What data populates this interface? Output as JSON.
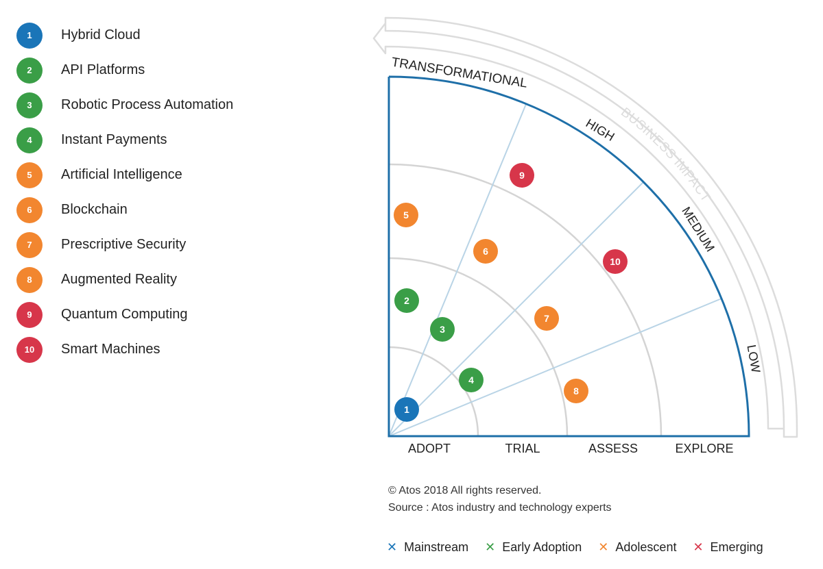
{
  "technologies": [
    {
      "number": "1",
      "label": "Hybrid Cloud",
      "maturity": "Mainstream",
      "color": "#1a75b8",
      "ring": "ADOPT",
      "impact": "LOW"
    },
    {
      "number": "2",
      "label": "API Platforms",
      "maturity": "Early Adoption",
      "color": "#3a9e47",
      "ring": "ADOPT",
      "impact": "TRANSFORMATIONAL"
    },
    {
      "number": "3",
      "label": "Robotic Process Automation",
      "maturity": "Early Adoption",
      "color": "#3a9e47",
      "ring": "TRIAL",
      "impact": "HIGH"
    },
    {
      "number": "4",
      "label": "Instant Payments",
      "maturity": "Early Adoption",
      "color": "#3a9e47",
      "ring": "TRIAL",
      "impact": "MEDIUM"
    },
    {
      "number": "5",
      "label": "Artificial Intelligence",
      "maturity": "Adolescent",
      "color": "#f2862f",
      "ring": "EXPLORE",
      "impact": "TRANSFORMATIONAL"
    },
    {
      "number": "6",
      "label": "Blockchain",
      "maturity": "Adolescent",
      "color": "#f2862f",
      "ring": "ASSESS",
      "impact": "HIGH"
    },
    {
      "number": "7",
      "label": "Prescriptive Security",
      "maturity": "Adolescent",
      "color": "#f2862f",
      "ring": "ASSESS",
      "impact": "MEDIUM"
    },
    {
      "number": "8",
      "label": "Augmented Reality",
      "maturity": "Adolescent",
      "color": "#f2862f",
      "ring": "ASSESS",
      "impact": "LOW"
    },
    {
      "number": "9",
      "label": "Quantum Computing",
      "maturity": "Emerging",
      "color": "#d7364a",
      "ring": "EXPLORE",
      "impact": "HIGH"
    },
    {
      "number": "10",
      "label": "Smart Machines",
      "maturity": "Emerging",
      "color": "#d7364a",
      "ring": "EXPLORE",
      "impact": "MEDIUM"
    }
  ],
  "rings": [
    "ADOPT",
    "TRIAL",
    "ASSESS",
    "EXPLORE"
  ],
  "impact_levels": [
    "TRANSFORMATIONAL",
    "HIGH",
    "MEDIUM",
    "LOW"
  ],
  "impact_axis_label": "BUSINESS IMPACT",
  "copyright": "© Atos 2018 All rights reserved.",
  "source": "Source : Atos industry and technology experts",
  "maturity_legend": [
    {
      "label": "Mainstream",
      "color": "#1a75b8"
    },
    {
      "label": "Early Adoption",
      "color": "#3a9e47"
    },
    {
      "label": "Adolescent",
      "color": "#f2862f"
    },
    {
      "label": "Emerging",
      "color": "#d7364a"
    }
  ],
  "colors": {
    "radar_outline": "#1e6fa8",
    "sector_lines": "#b9d4e6",
    "ring_lines": "#d4d4d4",
    "impact_arrow": "#dcdcdc"
  }
}
